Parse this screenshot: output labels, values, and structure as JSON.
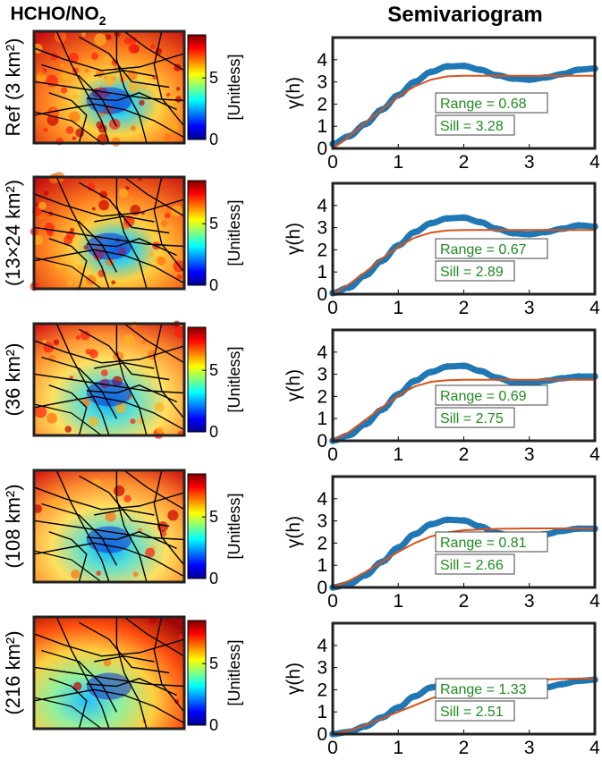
{
  "figure": {
    "left_title_main": "HCHO/NO",
    "left_title_sub": "2",
    "right_title": "Semivariogram"
  },
  "colorbar": {
    "ticks": [
      0,
      5
    ],
    "unit_label": "[Unitless]",
    "range": [
      0,
      8.5
    ]
  },
  "chart_data": [
    {
      "type": "line",
      "panel_label": "Ref (3 km²)",
      "ylabel": "γ(h)",
      "xlim": [
        0,
        4
      ],
      "ylim": [
        0,
        5
      ],
      "xticks": [
        0,
        1,
        2,
        3,
        4
      ],
      "yticks": [
        0,
        1,
        2,
        3,
        4
      ],
      "series": [
        {
          "color": "#1f77b4",
          "x": [
            0,
            0.25,
            0.5,
            0.75,
            1.0,
            1.25,
            1.5,
            1.75,
            2.0,
            2.25,
            2.5,
            2.75,
            3.0,
            3.25,
            3.5,
            3.75,
            4.0
          ],
          "y": [
            0.2,
            0.55,
            1.1,
            1.75,
            2.4,
            3.0,
            3.45,
            3.7,
            3.72,
            3.55,
            3.3,
            3.15,
            3.1,
            3.2,
            3.35,
            3.55,
            3.6
          ]
        },
        {
          "color": "#d95319",
          "x": [
            0,
            0.25,
            0.5,
            0.75,
            1.0,
            1.25,
            1.5,
            1.75,
            2.0,
            2.5,
            3.0,
            3.5,
            4.0
          ],
          "y": [
            0.0,
            0.55,
            1.15,
            1.75,
            2.35,
            2.8,
            3.1,
            3.25,
            3.28,
            3.28,
            3.28,
            3.28,
            3.28
          ]
        }
      ],
      "annotations": [
        "Range = 0.68",
        "Sill = 3.28"
      ]
    },
    {
      "type": "line",
      "panel_label": "(13×24 km²)",
      "ylabel": "γ(h)",
      "xlim": [
        0,
        4
      ],
      "ylim": [
        0,
        5
      ],
      "xticks": [
        0,
        1,
        2,
        3,
        4
      ],
      "yticks": [
        0,
        1,
        2,
        3,
        4
      ],
      "series": [
        {
          "color": "#1f77b4",
          "x": [
            0,
            0.25,
            0.5,
            0.75,
            1.0,
            1.25,
            1.5,
            1.75,
            2.0,
            2.25,
            2.5,
            2.75,
            3.0,
            3.25,
            3.5,
            3.75,
            4.0
          ],
          "y": [
            0.05,
            0.3,
            0.85,
            1.5,
            2.2,
            2.8,
            3.2,
            3.42,
            3.45,
            3.25,
            2.95,
            2.75,
            2.7,
            2.8,
            2.95,
            3.1,
            3.05
          ]
        },
        {
          "color": "#d95319",
          "x": [
            0,
            0.25,
            0.5,
            0.75,
            1.0,
            1.25,
            1.5,
            1.75,
            2.0,
            2.5,
            3.0,
            3.5,
            4.0
          ],
          "y": [
            0.0,
            0.45,
            1.0,
            1.6,
            2.15,
            2.55,
            2.78,
            2.87,
            2.89,
            2.89,
            2.89,
            2.89,
            2.89
          ]
        }
      ],
      "annotations": [
        "Range = 0.67",
        "Sill = 2.89"
      ]
    },
    {
      "type": "line",
      "panel_label": "(36 km²)",
      "ylabel": "γ(h)",
      "xlim": [
        0,
        4
      ],
      "ylim": [
        0,
        5
      ],
      "xticks": [
        0,
        1,
        2,
        3,
        4
      ],
      "yticks": [
        0,
        1,
        2,
        3,
        4
      ],
      "series": [
        {
          "color": "#1f77b4",
          "x": [
            0,
            0.25,
            0.5,
            0.75,
            1.0,
            1.25,
            1.5,
            1.75,
            2.0,
            2.25,
            2.5,
            2.75,
            3.0,
            3.25,
            3.5,
            3.75,
            4.0
          ],
          "y": [
            0.0,
            0.25,
            0.75,
            1.4,
            2.1,
            2.7,
            3.1,
            3.35,
            3.38,
            3.15,
            2.85,
            2.65,
            2.6,
            2.7,
            2.82,
            2.9,
            2.9
          ]
        },
        {
          "color": "#d95319",
          "x": [
            0,
            0.25,
            0.5,
            0.75,
            1.0,
            1.25,
            1.5,
            1.75,
            2.0,
            2.5,
            3.0,
            3.5,
            4.0
          ],
          "y": [
            0.0,
            0.4,
            0.95,
            1.5,
            2.05,
            2.45,
            2.66,
            2.73,
            2.75,
            2.75,
            2.75,
            2.75,
            2.75
          ]
        }
      ],
      "annotations": [
        "Range = 0.69",
        "Sill = 2.75"
      ]
    },
    {
      "type": "line",
      "panel_label": "(108 km²)",
      "ylabel": "γ(h)",
      "xlim": [
        0,
        4
      ],
      "ylim": [
        0,
        5
      ],
      "xticks": [
        0,
        1,
        2,
        3,
        4
      ],
      "yticks": [
        0,
        1,
        2,
        3,
        4
      ],
      "series": [
        {
          "color": "#1f77b4",
          "x": [
            0,
            0.25,
            0.5,
            0.75,
            1.0,
            1.25,
            1.5,
            1.75,
            2.0,
            2.25,
            2.5,
            2.75,
            3.0,
            3.25,
            3.5,
            3.75,
            4.0
          ],
          "y": [
            0.0,
            0.15,
            0.55,
            1.15,
            1.8,
            2.4,
            2.85,
            3.05,
            3.02,
            2.75,
            2.45,
            2.3,
            2.3,
            2.4,
            2.55,
            2.65,
            2.65
          ]
        },
        {
          "color": "#d95319",
          "x": [
            0,
            0.25,
            0.5,
            0.75,
            1.0,
            1.25,
            1.5,
            1.75,
            2.0,
            2.5,
            3.0,
            3.5,
            4.0
          ],
          "y": [
            0.0,
            0.3,
            0.7,
            1.15,
            1.6,
            2.0,
            2.3,
            2.48,
            2.58,
            2.64,
            2.66,
            2.66,
            2.66
          ]
        }
      ],
      "annotations": [
        "Range = 0.81",
        "Sill = 2.66"
      ]
    },
    {
      "type": "line",
      "panel_label": "(216 km²)",
      "ylabel": "γ(h)",
      "xlim": [
        0,
        4
      ],
      "ylim": [
        0,
        5
      ],
      "xticks": [
        0,
        1,
        2,
        3,
        4
      ],
      "yticks": [
        0,
        1,
        2,
        3,
        4
      ],
      "series": [
        {
          "color": "#1f77b4",
          "x": [
            0,
            0.25,
            0.5,
            0.75,
            1.0,
            1.25,
            1.5,
            1.75,
            2.0,
            2.25,
            2.5,
            2.75,
            3.0,
            3.25,
            3.5,
            3.75,
            4.0
          ],
          "y": [
            0.0,
            0.1,
            0.35,
            0.75,
            1.2,
            1.7,
            2.1,
            2.3,
            2.32,
            2.15,
            1.95,
            1.9,
            1.95,
            2.1,
            2.25,
            2.4,
            2.45
          ]
        },
        {
          "color": "#d95319",
          "x": [
            0,
            0.25,
            0.5,
            0.75,
            1.0,
            1.25,
            1.5,
            1.75,
            2.0,
            2.5,
            3.0,
            3.5,
            4.0
          ],
          "y": [
            0.0,
            0.15,
            0.4,
            0.7,
            1.0,
            1.3,
            1.6,
            1.85,
            2.05,
            2.3,
            2.43,
            2.49,
            2.51
          ]
        }
      ],
      "annotations": [
        "Range = 1.33",
        "Sill = 2.51"
      ]
    }
  ]
}
